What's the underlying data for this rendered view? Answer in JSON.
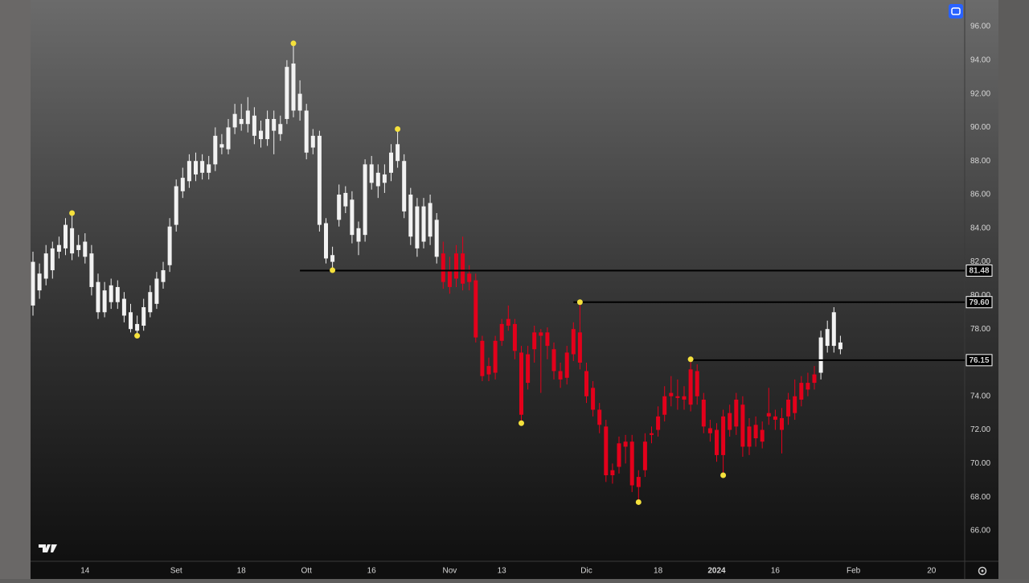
{
  "chart_data": {
    "type": "candlestick",
    "categories": [
      null,
      null,
      null,
      null,
      null,
      null,
      null,
      null,
      "14",
      null,
      null,
      null,
      null,
      null,
      null,
      null,
      null,
      null,
      null,
      null,
      null,
      null,
      "Set",
      null,
      null,
      null,
      null,
      null,
      null,
      null,
      null,
      null,
      "18",
      null,
      null,
      null,
      null,
      null,
      null,
      null,
      null,
      null,
      "Ott",
      null,
      null,
      null,
      null,
      null,
      null,
      null,
      null,
      null,
      "16",
      null,
      null,
      null,
      null,
      null,
      null,
      null,
      null,
      null,
      null,
      null,
      "Nov",
      null,
      null,
      null,
      null,
      null,
      null,
      null,
      "13",
      null,
      null,
      null,
      null,
      null,
      null,
      null,
      null,
      null,
      null,
      null,
      null,
      "Dic",
      null,
      null,
      null,
      null,
      null,
      null,
      null,
      null,
      null,
      null,
      "18",
      null,
      null,
      null,
      null,
      null,
      null,
      null,
      null,
      "2024",
      null,
      null,
      null,
      null,
      null,
      null,
      null,
      null,
      "16",
      null,
      null,
      null,
      null,
      null,
      null,
      null,
      null,
      null,
      null,
      null,
      "Feb",
      null,
      null,
      null,
      null,
      null,
      null,
      null,
      null,
      null,
      null,
      null,
      "20",
      null,
      null,
      null,
      null
    ],
    "open": [
      82.0,
      81.3,
      81.0,
      81.5,
      82.6,
      82.8,
      84.0,
      83.0,
      83.2,
      82.5,
      80.8,
      79.0,
      79.6,
      80.5,
      79.8,
      79.0,
      77.9,
      78.2,
      79.0,
      79.5,
      80.8,
      81.8,
      84.2,
      86.2,
      86.8,
      88.0,
      87.3,
      87.8,
      87.8,
      89.0,
      88.7,
      90.0,
      90.5,
      90.2,
      90.7,
      89.8,
      89.3,
      89.8,
      90.2,
      90.5,
      93.8,
      92.0,
      91.0,
      88.8,
      89.5,
      84.3,
      82.0,
      84.5,
      85.3,
      85.7,
      84.0,
      83.6,
      87.8,
      87.3,
      86.7,
      87.3,
      88.0,
      88.0,
      86.0,
      85.3,
      83.2,
      85.5,
      84.5,
      82.5,
      81.5,
      81.0,
      82.5,
      81.3,
      80.9,
      77.3,
      75.3,
      75.4,
      77.3,
      78.2,
      78.3,
      76.6,
      74.8,
      76.8,
      77.8,
      77.8,
      76.8,
      75.5,
      75.1,
      76.5,
      77.8,
      75.5,
      74.5,
      73.2,
      72.2,
      69.6,
      69.8,
      71.0,
      71.3,
      69.2,
      69.6,
      71.7,
      72.0,
      72.9,
      74.0,
      74.0,
      74.0,
      73.5,
      75.5,
      73.8,
      72.1,
      72.0,
      70.5,
      72.0,
      72.2,
      73.5,
      72.2,
      71.5,
      72.0,
      72.8,
      72.8,
      72.7,
      72.8,
      73.0,
      73.8,
      74.4,
      74.8,
      75.4,
      77.0,
      77.0,
      77.2,
      null,
      null,
      null,
      null,
      null,
      null,
      null,
      null,
      null,
      null,
      null,
      null,
      null,
      null,
      null,
      null,
      null,
      null
    ],
    "high": [
      82.6,
      81.9,
      83.0,
      83.2,
      83.5,
      84.6,
      84.9,
      83.6,
      83.7,
      83.0,
      81.3,
      80.8,
      81.0,
      80.9,
      80.2,
      79.5,
      78.8,
      79.8,
      80.6,
      81.4,
      82.0,
      84.6,
      86.9,
      87.6,
      88.4,
      88.5,
      88.4,
      88.3,
      90.0,
      89.6,
      90.5,
      91.4,
      91.4,
      91.8,
      91.2,
      90.4,
      91.0,
      91.0,
      90.7,
      94.0,
      95.0,
      92.8,
      91.4,
      89.9,
      89.8,
      84.6,
      82.9,
      86.6,
      86.5,
      86.2,
      84.4,
      88.1,
      88.3,
      87.8,
      87.8,
      89.0,
      89.9,
      88.4,
      86.4,
      85.8,
      85.8,
      86.0,
      84.9,
      83.2,
      82.3,
      83.0,
      83.5,
      81.8,
      81.3,
      77.6,
      76.3,
      77.6,
      78.6,
      79.4,
      78.6,
      77.0,
      77.0,
      78.2,
      78.0,
      78.1,
      77.2,
      76.0,
      77.0,
      78.4,
      79.6,
      76.0,
      74.9,
      73.6,
      72.6,
      70.0,
      71.6,
      71.7,
      71.7,
      69.6,
      71.8,
      72.2,
      73.4,
      74.6,
      75.2,
      75.0,
      74.6,
      76.2,
      75.9,
      74.2,
      72.6,
      72.4,
      73.2,
      73.5,
      74.2,
      74.0,
      72.7,
      72.8,
      72.5,
      74.5,
      73.2,
      73.3,
      74.2,
      75.0,
      75.2,
      75.4,
      75.8,
      77.9,
      78.5,
      79.3,
      77.6,
      null,
      null,
      null,
      null,
      null,
      null,
      null,
      null,
      null,
      null,
      null,
      null,
      null,
      null,
      null,
      null,
      null,
      null
    ],
    "low": [
      78.8,
      79.8,
      80.6,
      81.0,
      82.2,
      82.4,
      82.1,
      82.3,
      81.9,
      80.0,
      78.6,
      78.7,
      79.2,
      79.2,
      78.4,
      77.8,
      77.6,
      77.9,
      78.7,
      79.2,
      80.4,
      81.4,
      83.8,
      85.8,
      86.4,
      86.8,
      86.9,
      86.9,
      87.4,
      88.4,
      88.4,
      89.6,
      89.8,
      89.7,
      89.0,
      88.8,
      88.9,
      88.4,
      89.2,
      90.2,
      90.6,
      90.4,
      88.1,
      88.4,
      83.8,
      81.9,
      81.5,
      84.1,
      84.9,
      83.1,
      82.4,
      83.2,
      86.3,
      85.8,
      86.1,
      86.8,
      87.6,
      84.6,
      83.0,
      82.3,
      82.8,
      83.0,
      81.9,
      80.4,
      80.1,
      80.5,
      80.3,
      80.3,
      77.2,
      74.9,
      74.9,
      75.0,
      77.0,
      77.9,
      76.2,
      72.4,
      74.4,
      76.0,
      74.2,
      76.2,
      75.0,
      74.5,
      74.7,
      76.1,
      75.6,
      73.6,
      72.8,
      71.8,
      68.9,
      68.8,
      69.4,
      70.0,
      68.3,
      67.7,
      69.2,
      71.2,
      71.6,
      72.5,
      73.4,
      73.2,
      73.2,
      73.1,
      73.5,
      71.8,
      71.3,
      70.1,
      69.3,
      71.6,
      71.7,
      70.4,
      70.5,
      71.0,
      70.9,
      72.3,
      72.0,
      70.6,
      72.3,
      72.6,
      73.4,
      74.0,
      74.4,
      75.0,
      76.6,
      76.6,
      76.5,
      null,
      null,
      null,
      null,
      null,
      null,
      null,
      null,
      null,
      null,
      null,
      null,
      null,
      null,
      null,
      null,
      null,
      null
    ],
    "close": [
      79.4,
      80.3,
      82.5,
      82.8,
      83.0,
      84.2,
      82.5,
      82.7,
      82.3,
      80.5,
      79.0,
      80.3,
      80.6,
      79.6,
      78.8,
      78.0,
      78.3,
      79.3,
      80.2,
      81.0,
      81.5,
      84.1,
      86.5,
      87.0,
      88.0,
      87.2,
      88.0,
      87.3,
      89.5,
      88.8,
      90.0,
      90.8,
      90.2,
      91.0,
      89.5,
      89.3,
      90.5,
      90.5,
      89.6,
      93.6,
      91.0,
      91.0,
      88.5,
      89.5,
      84.2,
      82.2,
      82.4,
      86.0,
      86.1,
      83.6,
      83.2,
      87.8,
      86.7,
      86.5,
      87.2,
      88.5,
      89.0,
      85.0,
      83.5,
      82.8,
      85.3,
      83.5,
      82.3,
      80.8,
      80.5,
      82.5,
      80.7,
      80.8,
      77.5,
      75.2,
      75.8,
      77.3,
      78.3,
      78.6,
      76.7,
      72.9,
      76.5,
      77.8,
      77.6,
      77.0,
      75.5,
      75.0,
      76.6,
      78.0,
      76.0,
      74.0,
      73.2,
      72.3,
      69.3,
      69.3,
      71.2,
      71.3,
      68.7,
      68.6,
      71.3,
      71.8,
      72.8,
      74.0,
      74.2,
      73.9,
      73.8,
      75.6,
      74.0,
      72.2,
      71.8,
      70.5,
      72.8,
      73.0,
      73.8,
      71.0,
      71.0,
      72.3,
      71.3,
      73.0,
      72.6,
      72.0,
      73.8,
      74.0,
      74.8,
      74.8,
      75.3,
      77.5,
      78.0,
      79.0,
      76.8,
      null,
      null,
      null,
      null,
      null,
      null,
      null,
      null,
      null,
      null,
      null,
      null,
      null,
      null,
      null,
      null,
      null,
      null
    ],
    "colors": [
      "#f2f2f2",
      "#f2f2f2",
      "#f2f2f2",
      "#f2f2f2",
      "#f2f2f2",
      "#f2f2f2",
      "#f2f2f2",
      "#f2f2f2",
      "#f2f2f2",
      "#f2f2f2",
      "#f2f2f2",
      "#f2f2f2",
      "#f2f2f2",
      "#f2f2f2",
      "#f2f2f2",
      "#f2f2f2",
      "#f2f2f2",
      "#f2f2f2",
      "#f2f2f2",
      "#f2f2f2",
      "#f2f2f2",
      "#f2f2f2",
      "#f2f2f2",
      "#f2f2f2",
      "#f2f2f2",
      "#f2f2f2",
      "#f2f2f2",
      "#f2f2f2",
      "#f2f2f2",
      "#f2f2f2",
      "#f2f2f2",
      "#f2f2f2",
      "#f2f2f2",
      "#f2f2f2",
      "#f2f2f2",
      "#f2f2f2",
      "#f2f2f2",
      "#f2f2f2",
      "#f2f2f2",
      "#f2f2f2",
      "#f2f2f2",
      "#f2f2f2",
      "#f2f2f2",
      "#f2f2f2",
      "#f2f2f2",
      "#f2f2f2",
      "#f2f2f2",
      "#f2f2f2",
      "#f2f2f2",
      "#f2f2f2",
      "#f2f2f2",
      "#f2f2f2",
      "#f2f2f2",
      "#f2f2f2",
      "#f2f2f2",
      "#f2f2f2",
      "#f2f2f2",
      "#f2f2f2",
      "#f2f2f2",
      "#f2f2f2",
      "#f2f2f2",
      "#f2f2f2",
      "#f2f2f2",
      "#e3001b",
      "#e3001b",
      "#e3001b",
      "#e3001b",
      "#e3001b",
      "#e3001b",
      "#e3001b",
      "#e3001b",
      "#e3001b",
      "#e3001b",
      "#e3001b",
      "#e3001b",
      "#e3001b",
      "#e3001b",
      "#e3001b",
      "#e3001b",
      "#e3001b",
      "#e3001b",
      "#e3001b",
      "#e3001b",
      "#e3001b",
      "#e3001b",
      "#e3001b",
      "#e3001b",
      "#e3001b",
      "#e3001b",
      "#e3001b",
      "#e3001b",
      "#e3001b",
      "#e3001b",
      "#e3001b",
      "#e3001b",
      "#e3001b",
      "#e3001b",
      "#e3001b",
      "#e3001b",
      "#e3001b",
      "#e3001b",
      "#e3001b",
      "#e3001b",
      "#e3001b",
      "#e3001b",
      "#e3001b",
      "#e3001b",
      "#e3001b",
      "#e3001b",
      "#e3001b",
      "#e3001b",
      "#e3001b",
      "#e3001b",
      "#e3001b",
      "#e3001b",
      "#e3001b",
      "#e3001b",
      "#e3001b",
      "#e3001b",
      "#e3001b",
      "#e3001b",
      "#f2f2f2",
      "#f2f2f2",
      "#f2f2f2",
      "#f2f2f2",
      null,
      null,
      null,
      null,
      null,
      null,
      null,
      null,
      null,
      null,
      null,
      null,
      null,
      null,
      null,
      null,
      null,
      null
    ],
    "pivots": {
      "x": [
        6,
        16,
        40,
        46,
        56,
        75,
        84,
        93,
        101,
        106
      ],
      "values": [
        84.9,
        77.6,
        95.0,
        81.5,
        89.9,
        72.4,
        79.6,
        67.7,
        76.2,
        69.3
      ],
      "color": "#f5e13c"
    },
    "levels": {
      "start": [
        41,
        83,
        101
      ],
      "values": [
        81.48,
        79.6,
        76.15
      ],
      "value_labels": [
        "81.48",
        "79.60",
        "76.15"
      ],
      "color": "#000000"
    },
    "ylim": [
      64.18,
      97.58
    ],
    "yticks": [
      {
        "value": 66,
        "label": "66.00"
      },
      {
        "value": 68,
        "label": "68.00"
      },
      {
        "value": 70,
        "label": "70.00"
      },
      {
        "value": 72,
        "label": "72.00"
      },
      {
        "value": 74,
        "label": "74.00"
      },
      {
        "value": 76,
        "label": "76.00"
      },
      {
        "value": 78,
        "label": "78.00"
      },
      {
        "value": 80,
        "label": "80.00"
      },
      {
        "value": 82,
        "label": "82.00"
      },
      {
        "value": 84,
        "label": "84.00"
      },
      {
        "value": 86,
        "label": "86.00"
      },
      {
        "value": 88,
        "label": "88.00"
      },
      {
        "value": 90,
        "label": "90.00"
      },
      {
        "value": 92,
        "label": "92.00"
      },
      {
        "value": 94,
        "label": "94.00"
      },
      {
        "value": 96,
        "label": "96.00"
      }
    ],
    "grid": false
  }
}
